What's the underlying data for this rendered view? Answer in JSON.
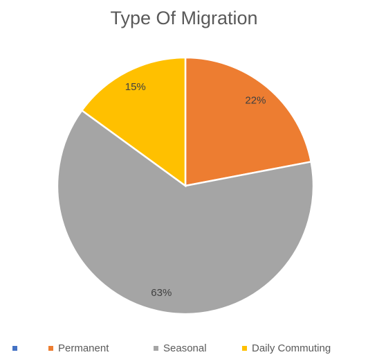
{
  "chart_data": {
    "type": "pie",
    "title": "Type Of Migration",
    "categories": [
      null,
      "Permanent",
      "Seasonal",
      "Daily Commuting"
    ],
    "values": [
      0,
      22,
      63,
      15
    ],
    "value_labels": [
      null,
      "22%",
      "63%",
      "15%"
    ],
    "colors": [
      "#4472c4",
      "#ed7d31",
      "#a5a5a5",
      "#ffc000"
    ],
    "legend": "bottom"
  }
}
